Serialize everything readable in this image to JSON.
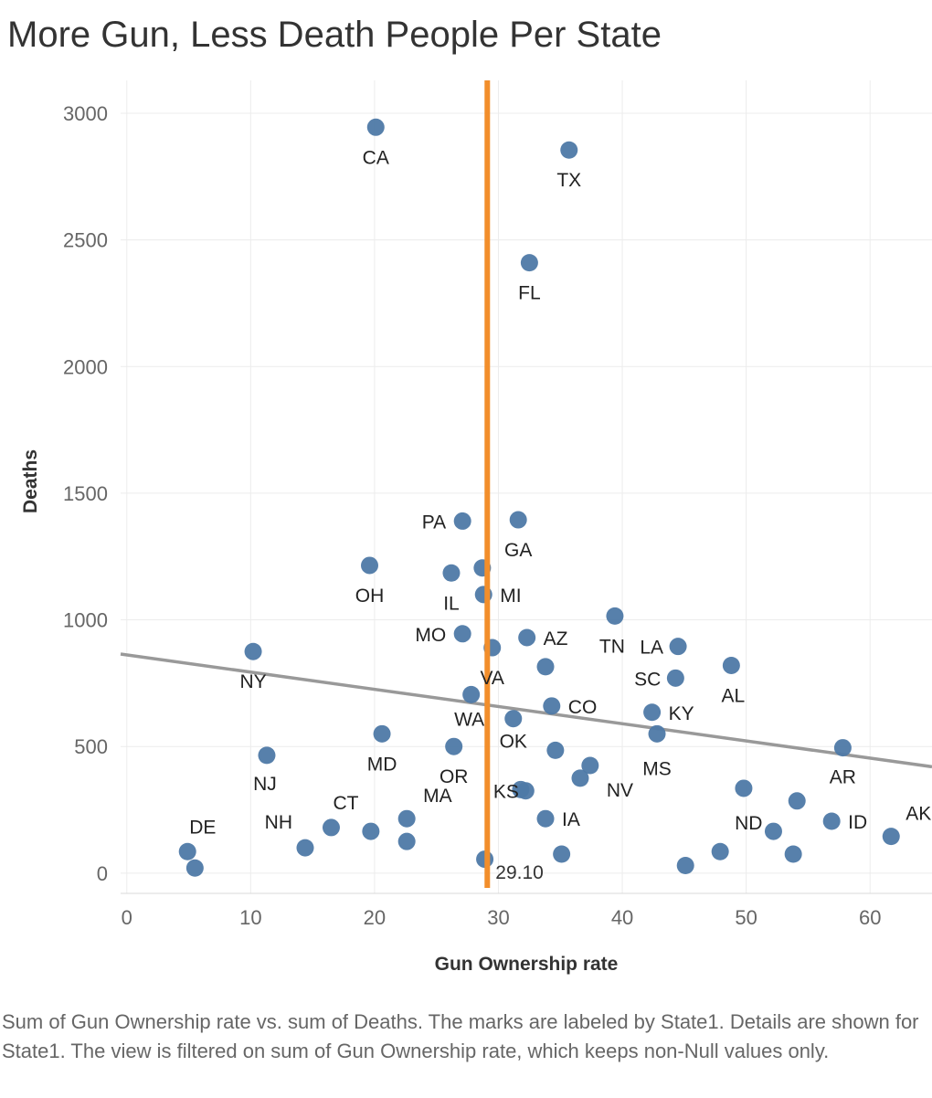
{
  "chart_data": {
    "type": "scatter",
    "title": "More Gun, Less Death People Per State",
    "xlabel": "Gun Ownership rate",
    "ylabel": "Deaths",
    "xlim": [
      -0.5,
      65
    ],
    "ylim": [
      -80,
      3130
    ],
    "xticks": [
      "0",
      "10",
      "20",
      "30",
      "40",
      "50",
      "60"
    ],
    "yticks": [
      "0",
      "500",
      "1000",
      "1500",
      "2000",
      "2500",
      "3000"
    ],
    "grid": true,
    "marker_color": "#4e79a7",
    "reference_line": {
      "x": 29.1,
      "label": "29.10",
      "color": "#f28e2b"
    },
    "trend_line": {
      "x": [
        -0.5,
        65
      ],
      "y": [
        865,
        420
      ],
      "color": "#999999"
    },
    "points": [
      {
        "label": "CA",
        "x": 20.1,
        "y": 2945
      },
      {
        "label": "TX",
        "x": 35.7,
        "y": 2855
      },
      {
        "label": "FL",
        "x": 32.5,
        "y": 2410
      },
      {
        "label": "PA",
        "x": 27.1,
        "y": 1390
      },
      {
        "label": "GA",
        "x": 31.6,
        "y": 1395
      },
      {
        "label": "OH",
        "x": 19.6,
        "y": 1215
      },
      {
        "label": "IL",
        "x": 26.2,
        "y": 1185
      },
      {
        "label": "",
        "x": 28.7,
        "y": 1205
      },
      {
        "label": "MI",
        "x": 28.8,
        "y": 1100
      },
      {
        "label": "MO",
        "x": 27.1,
        "y": 945
      },
      {
        "label": "VA",
        "x": 29.5,
        "y": 890
      },
      {
        "label": "AZ",
        "x": 32.3,
        "y": 930
      },
      {
        "label": "",
        "x": 33.8,
        "y": 815
      },
      {
        "label": "TN",
        "x": 39.4,
        "y": 1015
      },
      {
        "label": "LA",
        "x": 44.5,
        "y": 895
      },
      {
        "label": "SC",
        "x": 44.3,
        "y": 770
      },
      {
        "label": "AL",
        "x": 48.8,
        "y": 820
      },
      {
        "label": "NY",
        "x": 10.2,
        "y": 875
      },
      {
        "label": "WA",
        "x": 27.8,
        "y": 705
      },
      {
        "label": "CO",
        "x": 34.3,
        "y": 660
      },
      {
        "label": "OK",
        "x": 31.2,
        "y": 610
      },
      {
        "label": "KY",
        "x": 42.4,
        "y": 635
      },
      {
        "label": "MS",
        "x": 42.8,
        "y": 550
      },
      {
        "label": "MD",
        "x": 20.6,
        "y": 550
      },
      {
        "label": "OR",
        "x": 26.4,
        "y": 500
      },
      {
        "label": "",
        "x": 34.6,
        "y": 485
      },
      {
        "label": "NV",
        "x": 37.4,
        "y": 425
      },
      {
        "label": "",
        "x": 36.6,
        "y": 375
      },
      {
        "label": "AR",
        "x": 57.8,
        "y": 495
      },
      {
        "label": "NJ",
        "x": 11.3,
        "y": 465
      },
      {
        "label": "KS",
        "x": 31.8,
        "y": 330
      },
      {
        "label": "",
        "x": 32.2,
        "y": 325
      },
      {
        "label": "IA",
        "x": 33.8,
        "y": 215
      },
      {
        "label": "",
        "x": 49.8,
        "y": 335
      },
      {
        "label": "",
        "x": 54.1,
        "y": 285
      },
      {
        "label": "ND",
        "x": 52.2,
        "y": 165
      },
      {
        "label": "ID",
        "x": 56.9,
        "y": 205
      },
      {
        "label": "AK",
        "x": 61.7,
        "y": 145
      },
      {
        "label": "CT",
        "x": 16.5,
        "y": 180
      },
      {
        "label": "",
        "x": 19.7,
        "y": 165
      },
      {
        "label": "NH",
        "x": 14.4,
        "y": 100
      },
      {
        "label": "MA",
        "x": 22.6,
        "y": 215
      },
      {
        "label": "",
        "x": 22.6,
        "y": 125
      },
      {
        "label": "DE",
        "x": 4.9,
        "y": 85
      },
      {
        "label": "",
        "x": 5.5,
        "y": 20
      },
      {
        "label": "",
        "x": 28.9,
        "y": 55
      },
      {
        "label": "",
        "x": 35.1,
        "y": 75
      },
      {
        "label": "",
        "x": 47.9,
        "y": 85
      },
      {
        "label": "",
        "x": 53.8,
        "y": 75
      },
      {
        "label": "",
        "x": 45.1,
        "y": 30
      }
    ]
  },
  "caption": "Sum of Gun Ownership rate vs. sum of Deaths.  The marks are labeled by State1.  Details are shown for State1. The view is filtered on sum of Gun Ownership rate, which keeps non-Null values only."
}
